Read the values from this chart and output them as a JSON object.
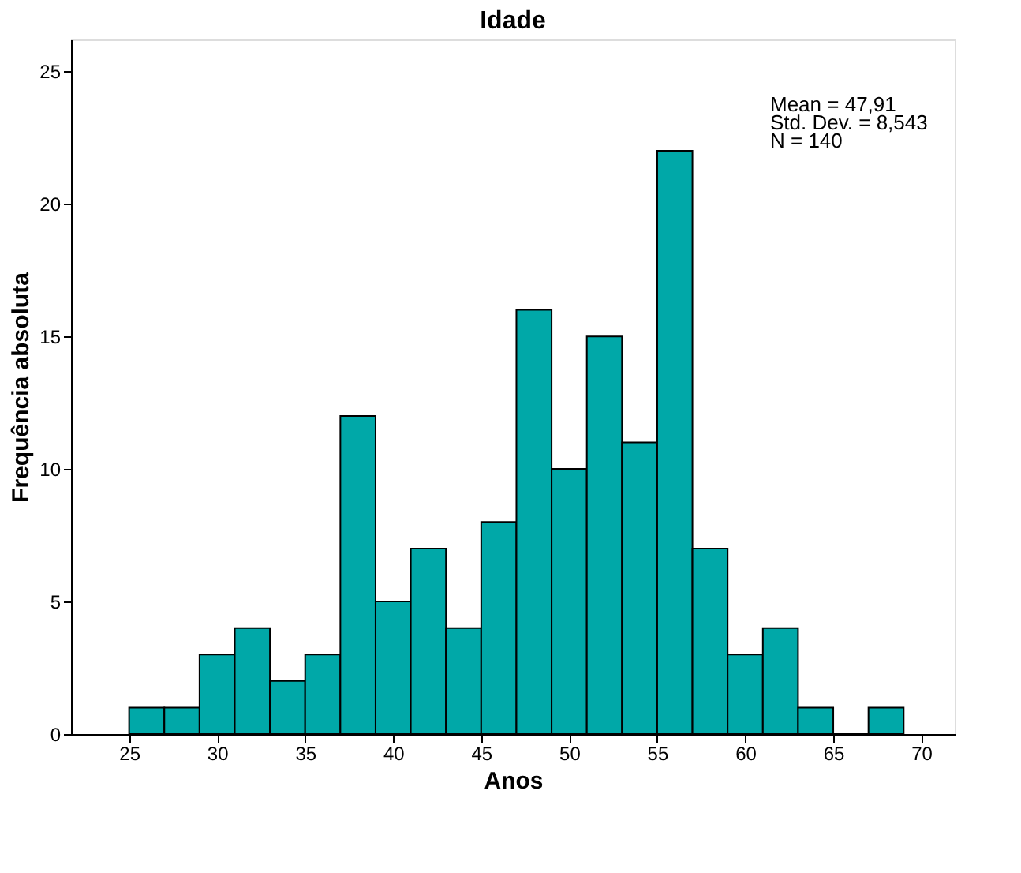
{
  "chart_data": {
    "type": "histogram",
    "title": "Idade",
    "xlabel": "Anos",
    "ylabel": "Frequência absoluta",
    "bins": [
      25,
      27,
      29,
      31,
      33,
      35,
      37,
      39,
      41,
      43,
      45,
      47,
      49,
      51,
      53,
      55,
      57,
      59,
      61,
      63,
      65,
      67,
      69
    ],
    "values": [
      1,
      1,
      3,
      4,
      2,
      3,
      12,
      5,
      7,
      4,
      8,
      16,
      10,
      15,
      11,
      22,
      7,
      3,
      4,
      1,
      0,
      1
    ],
    "color": "#00a8a8",
    "xlim": [
      21.7,
      71.9
    ],
    "xticks": [
      25,
      30,
      35,
      40,
      45,
      50,
      55,
      60,
      65,
      70
    ],
    "ylim": [
      0,
      26.2
    ],
    "yticks": [
      0,
      5,
      10,
      15,
      20,
      25
    ],
    "grid": false,
    "annotations": [
      "Mean = 47,91",
      "Std. Dev. = 8,543",
      "N = 140"
    ]
  }
}
